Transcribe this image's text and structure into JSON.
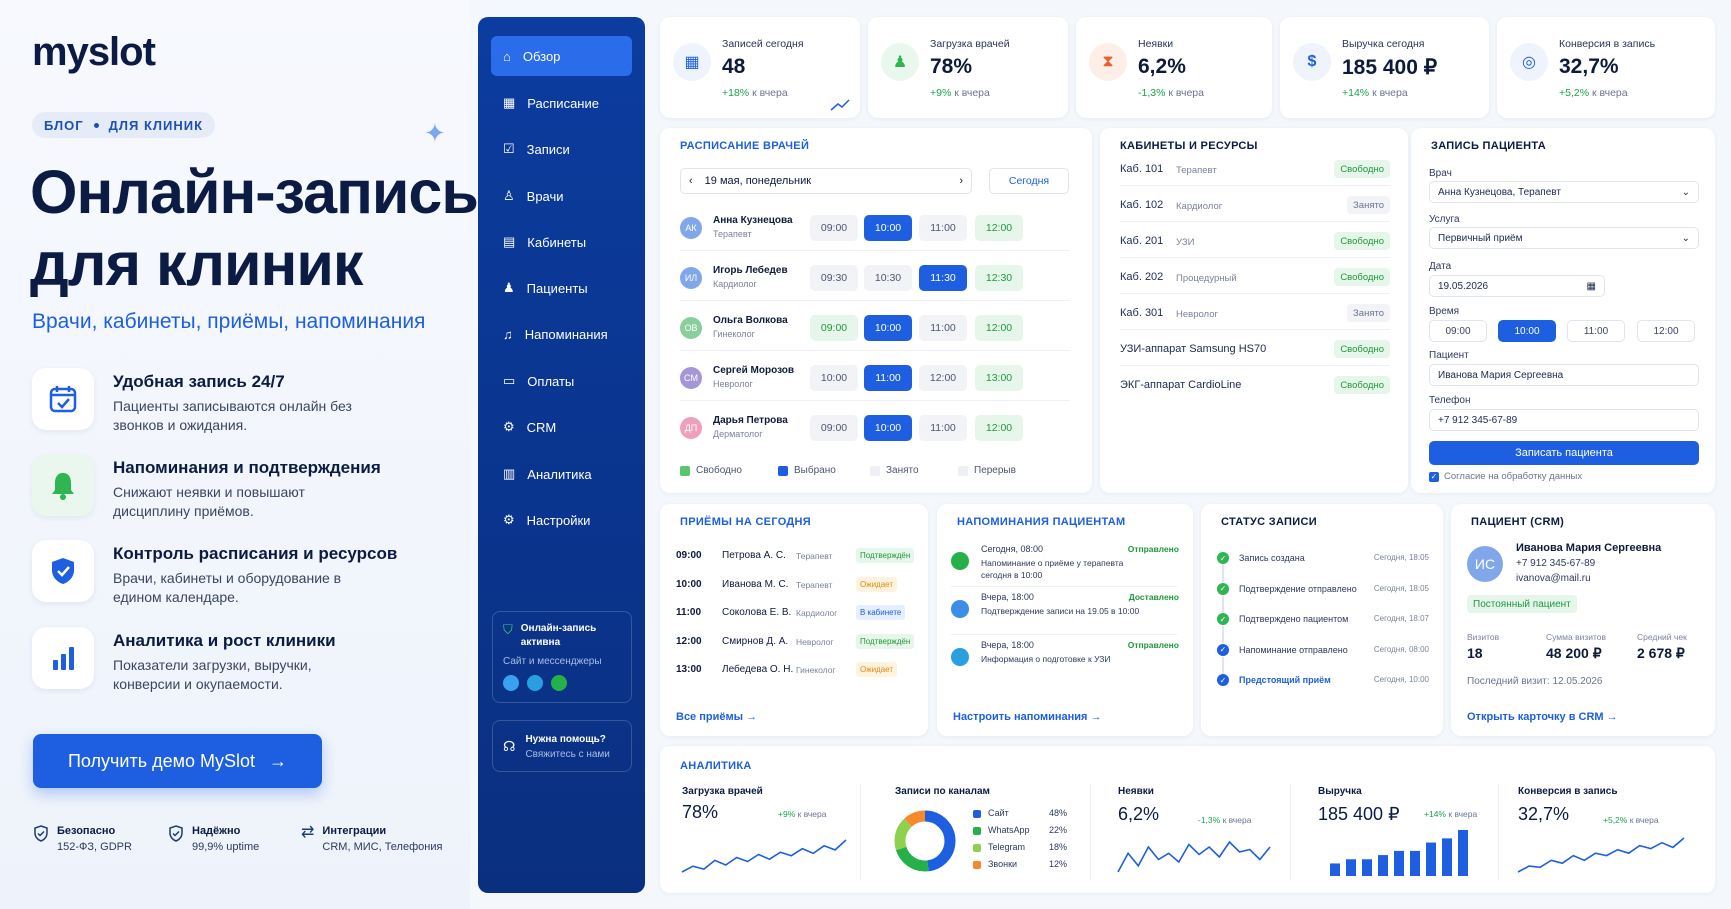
{
  "promo": {
    "logo": "myslot",
    "crumb_1": "БЛОГ",
    "crumb_2": "ДЛЯ КЛИНИК",
    "hero_1": "Онлайн-запись",
    "hero_2": "для клиник",
    "subline": "Врачи, кабинеты, приёмы, напоминания",
    "features": [
      {
        "title": "Удобная запись 24/7",
        "desc": "Пациенты записываются онлайн без звонков и ожидания.",
        "icon": "calendar-check-icon"
      },
      {
        "title": "Напоминания и подтверждения",
        "desc": "Снижают неявки и повышают дисциплину приёмов.",
        "icon": "bell-icon"
      },
      {
        "title": "Контроль расписания и ресурсов",
        "desc": "Врачи, кабинеты и оборудование в едином календаре.",
        "icon": "shield-check-icon"
      },
      {
        "title": "Аналитика и рост клиники",
        "desc": "Показатели загрузки, выручки, конверсии и окупаемости.",
        "icon": "bar-chart-icon"
      }
    ],
    "cta": "Получить демо MySlot",
    "trust": [
      {
        "title": "Безопасно",
        "desc": "152-ФЗ, GDPR"
      },
      {
        "title": "Надёжно",
        "desc": "99,9% uptime"
      },
      {
        "title": "Интеграции",
        "desc": "CRM, МИС, Телефония"
      }
    ]
  },
  "sidebar": {
    "items": [
      "Обзор",
      "Расписание",
      "Записи",
      "Врачи",
      "Кабинеты",
      "Пациенты",
      "Напоминания",
      "Оплаты",
      "CRM",
      "Аналитика",
      "Настройки"
    ],
    "online_title": "Онлайн-запись активна",
    "online_sub": "Сайт и мессенджеры",
    "help_title": "Нужна помощь?",
    "help_sub": "Свяжитесь с нами"
  },
  "kpis": [
    {
      "title": "Записей сегодня",
      "value": "48",
      "delta": "+18%",
      "suffix": "к вчера"
    },
    {
      "title": "Загрузка врачей",
      "value": "78%",
      "delta": "+9%",
      "suffix": "к вчера"
    },
    {
      "title": "Неявки",
      "value": "6,2%",
      "delta": "-1,3%",
      "suffix": "к вчера"
    },
    {
      "title": "Выручка сегодня",
      "value": "185 400 ₽",
      "delta": "+14%",
      "suffix": "к вчера"
    },
    {
      "title": "Конверсия в запись",
      "value": "32,7%",
      "delta": "+5,2%",
      "suffix": "к вчера"
    }
  ],
  "schedule": {
    "title": "РАСПИСАНИЕ ВРАЧЕЙ",
    "date": "19 мая, понедельник",
    "today": "Сегодня",
    "doctors": [
      {
        "initials": "АК",
        "name": "Анна Кузнецова",
        "spec": "Терапевт",
        "color": "#7fa7ea",
        "slots": [
          "09:00",
          "10:00",
          "11:00",
          "12:00"
        ],
        "states": [
          "busy",
          "sel",
          "busy",
          "free"
        ]
      },
      {
        "initials": "ИЛ",
        "name": "Игорь Лебедев",
        "spec": "Кардиолог",
        "color": "#7fa7ea",
        "slots": [
          "09:30",
          "10:30",
          "11:30",
          "12:30"
        ],
        "states": [
          "busy",
          "busy",
          "sel",
          "free"
        ]
      },
      {
        "initials": "ОВ",
        "name": "Ольга Волкова",
        "spec": "Гинеколог",
        "color": "#88cf9b",
        "slots": [
          "09:00",
          "10:00",
          "11:00",
          "12:00"
        ],
        "states": [
          "free",
          "sel",
          "busy",
          "free"
        ]
      },
      {
        "initials": "СМ",
        "name": "Сергей Морозов",
        "spec": "Невролог",
        "color": "#a597d6",
        "slots": [
          "10:00",
          "11:00",
          "12:00",
          "13:00"
        ],
        "states": [
          "busy",
          "sel",
          "busy",
          "free"
        ]
      },
      {
        "initials": "ДП",
        "name": "Дарья Петрова",
        "spec": "Дерматолог",
        "color": "#ee9fb9",
        "slots": [
          "09:00",
          "10:00",
          "11:00",
          "12:00"
        ],
        "states": [
          "busy",
          "sel",
          "busy",
          "free"
        ]
      }
    ],
    "legend": [
      "Свободно",
      "Выбрано",
      "Занято",
      "Перерыв"
    ]
  },
  "resources": {
    "title": "КАБИНЕТЫ И РЕСУРСЫ",
    "rows": [
      {
        "name": "Каб. 101",
        "spec": "Терапевт",
        "status": "Свободно",
        "free": true
      },
      {
        "name": "Каб. 102",
        "spec": "Кардиолог",
        "status": "Занято",
        "free": false
      },
      {
        "name": "Каб. 201",
        "spec": "УЗИ",
        "status": "Свободно",
        "free": true
      },
      {
        "name": "Каб. 202",
        "spec": "Процедурный",
        "status": "Свободно",
        "free": true
      },
      {
        "name": "Каб. 301",
        "spec": "Невролог",
        "status": "Занято",
        "free": false
      },
      {
        "name": "УЗИ-аппарат Samsung HS70",
        "spec": "",
        "status": "Свободно",
        "free": true
      },
      {
        "name": "ЭКГ-аппарат CardioLine",
        "spec": "",
        "status": "Свободно",
        "free": true
      }
    ]
  },
  "booking": {
    "title": "ЗАПИСЬ ПАЦИЕНТА",
    "doctor_label": "Врач",
    "doctor_value": "Анна Кузнецова, Терапевт",
    "service_label": "Услуга",
    "service_value": "Первичный приём",
    "date_label": "Дата",
    "date_value": "19.05.2026",
    "time_label": "Время",
    "times": [
      "09:00",
      "10:00",
      "11:00",
      "12:00"
    ],
    "patient_label": "Пациент",
    "patient_value": "Иванова Мария Сергеевна",
    "phone_label": "Телефон",
    "phone_value": "+7 912 345-67-89",
    "submit": "Записать пациента",
    "consent": "Согласие на обработку данных"
  },
  "appointments": {
    "title": "ПРИЁМЫ НА СЕГОДНЯ",
    "rows": [
      {
        "time": "09:00",
        "name": "Петрова А. С.",
        "spec": "Терапевт",
        "status": "Подтверждён",
        "bg": "#e7f6ea",
        "fg": "#1f9a3c"
      },
      {
        "time": "10:00",
        "name": "Иванова М. С.",
        "spec": "Терапевт",
        "status": "Ожидает",
        "bg": "#fff3e0",
        "fg": "#e08a10"
      },
      {
        "time": "11:00",
        "name": "Соколова Е. В.",
        "spec": "Кардиолог",
        "status": "В кабинете",
        "bg": "#e6efff",
        "fg": "#1d5fe0"
      },
      {
        "time": "12:00",
        "name": "Смирнов Д. А.",
        "spec": "Невролог",
        "status": "Подтверждён",
        "bg": "#e7f6ea",
        "fg": "#1f9a3c"
      },
      {
        "time": "13:00",
        "name": "Лебедева О. Н.",
        "spec": "Гинеколог",
        "status": "Ожидает",
        "bg": "#fff3e0",
        "fg": "#e08a10"
      }
    ],
    "link": "Все приёмы"
  },
  "reminders": {
    "title": "НАПОМИНАНИЯ ПАЦИЕНТАМ",
    "rows": [
      {
        "when": "Сегодня, 08:00",
        "status": "Отправлено",
        "text": "Напоминание о приёме у терапевта сегодня в 10:00",
        "color": "#25b04a",
        "icon": "whatsapp-icon"
      },
      {
        "when": "Вчера, 18:00",
        "status": "Доставлено",
        "text": "Подтверждение записи на 19.05 в 10:00",
        "color": "#3a8ee6",
        "icon": "sms-icon"
      },
      {
        "when": "Вчера, 18:00",
        "status": "Отправлено",
        "text": "Информация о подготовке к УЗИ",
        "color": "#2a9fe0",
        "icon": "telegram-icon"
      }
    ],
    "link": "Настроить напоминания"
  },
  "status": {
    "title": "СТАТУС ЗАПИСИ",
    "rows": [
      {
        "text": "Запись создана",
        "time": "Сегодня, 18:05"
      },
      {
        "text": "Подтверждение отправлено",
        "time": "Сегодня, 18:05"
      },
      {
        "text": "Подтверждено пациентом",
        "time": "Сегодня, 18:07"
      },
      {
        "text": "Напоминание отправлено",
        "time": "Сегодня, 08:00"
      },
      {
        "text": "Предстоящий приём",
        "time": "Сегодня, 10:00"
      }
    ]
  },
  "crm": {
    "title": "ПАЦИЕНТ (CRM)",
    "initials": "ИС",
    "name": "Иванова Мария Сергеевна",
    "phone": "+7 912 345-67-89",
    "email": "ivanova@mail.ru",
    "badge": "Постоянный пациент",
    "visits_label": "Визитов",
    "visits": "18",
    "sum_label": "Сумма визитов",
    "sum": "48 200 ₽",
    "avg_label": "Средний чек",
    "avg": "2 678 ₽",
    "last_visit": "Последний визит: 12.05.2026",
    "link": "Открыть карточку в CRM"
  },
  "analytics": {
    "title": "АНАЛИТИКА",
    "load": {
      "title": "Загрузка врачей",
      "value": "78%",
      "delta": "+9%",
      "suffix": "к вчера",
      "points": [
        3,
        4,
        3.5,
        5,
        4.2,
        5.5,
        4.8,
        6,
        5.2,
        6.4,
        5.8,
        7,
        6.2,
        7.5,
        6.8,
        8.5
      ]
    },
    "channels": {
      "title": "Записи по каналам",
      "items": [
        {
          "label": "Сайт",
          "value": "48%",
          "share": 48,
          "color": "#1d5fe0"
        },
        {
          "label": "WhatsApp",
          "value": "22%",
          "share": 22,
          "color": "#25b04a"
        },
        {
          "label": "Telegram",
          "value": "18%",
          "share": 18,
          "color": "#8fd14f"
        },
        {
          "label": "Звонки",
          "value": "12%",
          "share": 12,
          "color": "#f5892b"
        }
      ]
    },
    "noshow": {
      "title": "Неявки",
      "value": "6,2%",
      "delta": "-1,3%",
      "suffix": "к вчера",
      "points": [
        4,
        5.5,
        4.5,
        6,
        5,
        5.5,
        4.8,
        6.2,
        5.4,
        6,
        5.2,
        6.4,
        5.6,
        5.8,
        5,
        6
      ]
    },
    "revenue": {
      "title": "Выручка",
      "value": "185 400 ₽",
      "delta": "+14%",
      "suffix": "к вчера",
      "bars": [
        3,
        4,
        4,
        5,
        6,
        6,
        8,
        9,
        11
      ]
    },
    "conversion": {
      "title": "Конверсия в запись",
      "value": "32,7%",
      "delta": "+5,2%",
      "suffix": "к вчера",
      "points": [
        3,
        4,
        3.8,
        5,
        4.5,
        5.8,
        5,
        6.2,
        5.8,
        6.8,
        6.2,
        7.5,
        7,
        8,
        7.2,
        8.8
      ]
    }
  }
}
